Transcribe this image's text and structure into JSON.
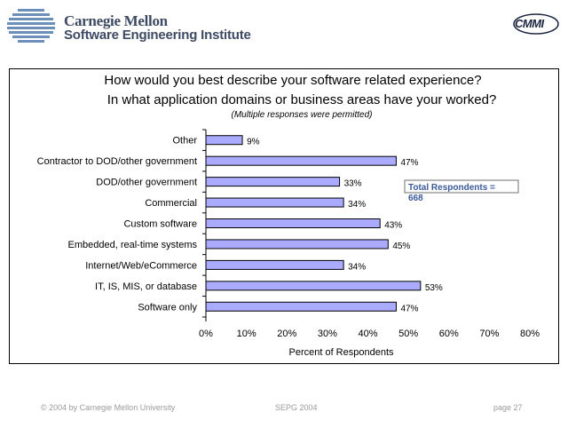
{
  "header": {
    "org_name": "Carnegie Mellon",
    "org_sub": "Software Engineering Institute",
    "badge": "CMMI"
  },
  "chart_data": {
    "type": "bar",
    "orientation": "horizontal",
    "title": "How would you best describe your software related experience?",
    "title2": "In what application domains or business areas have your worked?",
    "subtitle": "(Multiple responses were permitted)",
    "categories": [
      "Other",
      "Contractor to DOD/other government",
      "DOD/other government",
      "Commercial",
      "Custom software",
      "Embedded, real-time systems",
      "Internet/Web/eCommerce",
      "IT, IS, MIS, or database",
      "Software only"
    ],
    "values": [
      9,
      47,
      33,
      34,
      43,
      45,
      34,
      53,
      47
    ],
    "value_labels": [
      "9%",
      "47%",
      "33%",
      "34%",
      "43%",
      "45%",
      "34%",
      "53%",
      "47%"
    ],
    "xlabel": "Percent of Respondents",
    "xlim": [
      0,
      80
    ],
    "xticks": [
      "0%",
      "10%",
      "20%",
      "30%",
      "40%",
      "50%",
      "60%",
      "70%",
      "80%"
    ],
    "annotation": "Total Respondents = 668",
    "bar_color": "#aaaaff",
    "grid": false
  },
  "footer": {
    "copyright": "© 2004 by Carnegie Mellon University",
    "event": "SEPG 2004",
    "page": "page 27"
  }
}
